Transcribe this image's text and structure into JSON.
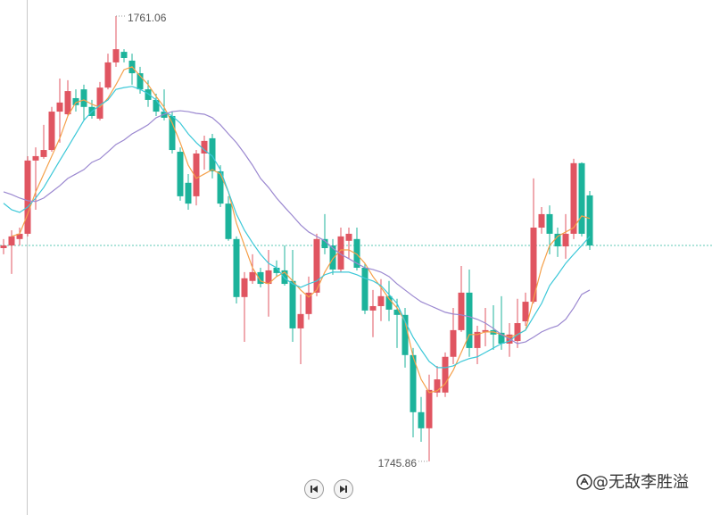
{
  "chart_data": {
    "type": "candlestick",
    "ylim": [
      1744.03,
      1761.61
    ],
    "up_color": "#e05561",
    "down_color": "#1cb39b",
    "open": [
      1753.14,
      1753.23,
      1753.45,
      1753.63,
      1756.13,
      1756.25,
      1756.49,
      1757.8,
      1757.71,
      1758.26,
      1758.56,
      1757.96,
      1757.56,
      1758.62,
      1759.48,
      1759.84,
      1759.54,
      1759.11,
      1758.56,
      1758.2,
      1757.8,
      1757.65,
      1756.43,
      1755.37,
      1754.91,
      1756.37,
      1756.89,
      1755.76,
      1754.66,
      1753.45,
      1751.47,
      1752.02,
      1752.32,
      1751.92,
      1752.47,
      1752.38,
      1752.02,
      1750.4,
      1750.89,
      1751.62,
      1753.45,
      1753.23,
      1752.41,
      1753.39,
      1753.45,
      1752.47,
      1751.01,
      1751.16,
      1751.5,
      1751.04,
      1750.86,
      1749.49,
      1747.54,
      1746.99,
      1748.21,
      1748.21,
      1749.43,
      1750.34,
      1751.62,
      1749.73,
      1750.28,
      1750.34,
      1750.25,
      1749.88,
      1749.97,
      1750.64,
      1751.31,
      1753.84,
      1754.3,
      1753.63,
      1753.2,
      1753.63,
      1756.04,
      1754.94
    ],
    "high": [
      1753.45,
      1753.75,
      1753.84,
      1756.28,
      1756.58,
      1757.35,
      1757.96,
      1758.93,
      1758.87,
      1758.56,
      1758.72,
      1758.2,
      1758.81,
      1759.78,
      1761.06,
      1759.93,
      1759.78,
      1759.33,
      1758.87,
      1758.41,
      1758.56,
      1757.8,
      1756.58,
      1755.67,
      1756.49,
      1756.98,
      1757.04,
      1755.97,
      1754.91,
      1753.54,
      1752.32,
      1752.93,
      1752.47,
      1753.08,
      1752.72,
      1753.23,
      1753.08,
      1751.56,
      1752.17,
      1753.63,
      1754.3,
      1753.45,
      1753.84,
      1753.84,
      1753.84,
      1752.62,
      1751.71,
      1752.08,
      1752.02,
      1751.41,
      1751.1,
      1749.73,
      1748.06,
      1748.82,
      1749.12,
      1749.58,
      1751.1,
      1752.53,
      1752.41,
      1750.49,
      1751.1,
      1751.19,
      1751.5,
      1750.58,
      1751.41,
      1751.62,
      1755.52,
      1754.54,
      1754.6,
      1753.84,
      1754.3,
      1756.19,
      1756.07,
      1755.09
    ],
    "low": [
      1752.93,
      1752.26,
      1753.23,
      1753.54,
      1754.45,
      1756.19,
      1756.43,
      1756.74,
      1757.65,
      1757.8,
      1757.5,
      1757.56,
      1757.5,
      1758.56,
      1759.33,
      1759.48,
      1758.72,
      1758.41,
      1757.96,
      1757.65,
      1757.5,
      1756.37,
      1754.76,
      1754.45,
      1754.6,
      1755.82,
      1755.52,
      1754.54,
      1753.39,
      1751.25,
      1749.94,
      1751.92,
      1751.8,
      1750.8,
      1752.17,
      1751.86,
      1749.94,
      1749.18,
      1750.7,
      1751.5,
      1752.93,
      1752.23,
      1752.32,
      1752.78,
      1752.38,
      1750.89,
      1750.1,
      1750.65,
      1750.65,
      1749.73,
      1749.06,
      1746.68,
      1746.53,
      1745.86,
      1748.06,
      1748.06,
      1749.18,
      1750.28,
      1749.43,
      1749.18,
      1749.79,
      1749.67,
      1749.67,
      1749.43,
      1749.73,
      1750.49,
      1751.25,
      1753.63,
      1752.93,
      1752.84,
      1752.78,
      1753.45,
      1753.54,
      1753.08
    ],
    "close": [
      1753.23,
      1753.54,
      1753.63,
      1756.13,
      1756.28,
      1756.49,
      1757.8,
      1758.11,
      1758.5,
      1758.02,
      1757.96,
      1757.65,
      1758.62,
      1759.48,
      1759.93,
      1759.63,
      1759.11,
      1758.56,
      1758.2,
      1757.8,
      1757.59,
      1756.49,
      1754.91,
      1754.66,
      1756.37,
      1756.8,
      1755.76,
      1754.66,
      1753.45,
      1751.47,
      1752.11,
      1752.32,
      1751.92,
      1752.38,
      1752.29,
      1751.92,
      1750.4,
      1750.89,
      1751.62,
      1753.45,
      1753.14,
      1752.41,
      1753.54,
      1753.63,
      1752.47,
      1751.01,
      1751.16,
      1751.5,
      1751.04,
      1750.86,
      1749.49,
      1747.54,
      1746.99,
      1748.3,
      1748.66,
      1749.43,
      1750.34,
      1751.62,
      1749.73,
      1750.28,
      1750.34,
      1750.19,
      1749.88,
      1750.19,
      1750.58,
      1751.31,
      1753.84,
      1754.3,
      1753.63,
      1753.2,
      1753.63,
      1756.04,
      1753.63,
      1753.23
    ],
    "lines": [
      {
        "color": "#f5a04a",
        "values": [
          null,
          1753.54,
          1753.63,
          1754.3,
          1755.06,
          1755.67,
          1756.28,
          1756.89,
          1757.65,
          1758.11,
          1758.2,
          1758.05,
          1757.95,
          1758.26,
          1758.72,
          1759.23,
          1759.33,
          1759.02,
          1758.72,
          1758.32,
          1757.95,
          1757.41,
          1756.74,
          1755.97,
          1755.52,
          1755.67,
          1755.82,
          1755.67,
          1755.06,
          1753.99,
          1753.23,
          1752.47,
          1752.02,
          1751.92,
          1752.17,
          1752.32,
          1752.02,
          1751.71,
          1751.47,
          1751.71,
          1752.32,
          1752.78,
          1753.08,
          1753.08,
          1752.93,
          1752.62,
          1752.17,
          1751.8,
          1751.41,
          1751.1,
          1750.64,
          1749.43,
          1748.66,
          1748.21,
          1748.27,
          1748.51,
          1748.97,
          1749.58,
          1750.19,
          1750.19,
          1750.28,
          1750.28,
          1750.19,
          1750.1,
          1750.19,
          1750.34,
          1751.41,
          1752.47,
          1753.23,
          1753.54,
          1753.69,
          1753.84,
          1754.24,
          1754.15
        ]
      },
      {
        "color": "#3cc8d8",
        "values": [
          1754.67,
          1754.45,
          1754.36,
          1754.54,
          1754.85,
          1755.21,
          1755.67,
          1756.13,
          1756.58,
          1757.04,
          1757.5,
          1757.8,
          1758.02,
          1758.2,
          1758.56,
          1758.62,
          1758.66,
          1758.56,
          1758.41,
          1758.2,
          1757.8,
          1757.65,
          1757.41,
          1757.04,
          1756.74,
          1756.49,
          1756.28,
          1755.82,
          1755.06,
          1754.3,
          1753.75,
          1753.32,
          1752.93,
          1752.62,
          1752.47,
          1752.11,
          1751.92,
          1751.8,
          1751.92,
          1752.02,
          1752.23,
          1752.32,
          1752.32,
          1752.32,
          1752.23,
          1752.11,
          1752.02,
          1751.86,
          1751.56,
          1751.25,
          1750.64,
          1750.1,
          1749.67,
          1749.27,
          1749.06,
          1749.06,
          1749.12,
          1749.27,
          1749.37,
          1749.43,
          1749.58,
          1749.73,
          1749.88,
          1749.97,
          1750.19,
          1750.34,
          1750.8,
          1751.25,
          1751.86,
          1752.23,
          1752.62,
          1752.93,
          1753.23,
          1753.54
        ]
      },
      {
        "color": "#9b88d0",
        "values": [
          1755.06,
          1754.97,
          1754.85,
          1754.76,
          1754.73,
          1754.85,
          1755.06,
          1755.27,
          1755.52,
          1755.67,
          1755.82,
          1756.07,
          1756.19,
          1756.43,
          1756.68,
          1756.83,
          1757.04,
          1757.19,
          1757.35,
          1757.59,
          1757.71,
          1757.8,
          1757.83,
          1757.8,
          1757.74,
          1757.71,
          1757.59,
          1757.35,
          1757.04,
          1756.74,
          1756.37,
          1755.97,
          1755.52,
          1755.21,
          1754.85,
          1754.54,
          1754.24,
          1753.93,
          1753.69,
          1753.54,
          1753.39,
          1753.14,
          1752.93,
          1752.78,
          1752.62,
          1752.47,
          1752.41,
          1752.32,
          1752.17,
          1751.92,
          1751.71,
          1751.5,
          1751.31,
          1751.19,
          1751.07,
          1750.95,
          1750.89,
          1750.86,
          1750.8,
          1750.71,
          1750.58,
          1750.4,
          1750.19,
          1750.04,
          1749.88,
          1749.94,
          1750.1,
          1750.28,
          1750.4,
          1750.49,
          1750.71,
          1751.1,
          1751.56,
          1751.71
        ]
      }
    ],
    "last_price_color": "#5cc9b5"
  },
  "watermark": "@无敌李胜溢"
}
